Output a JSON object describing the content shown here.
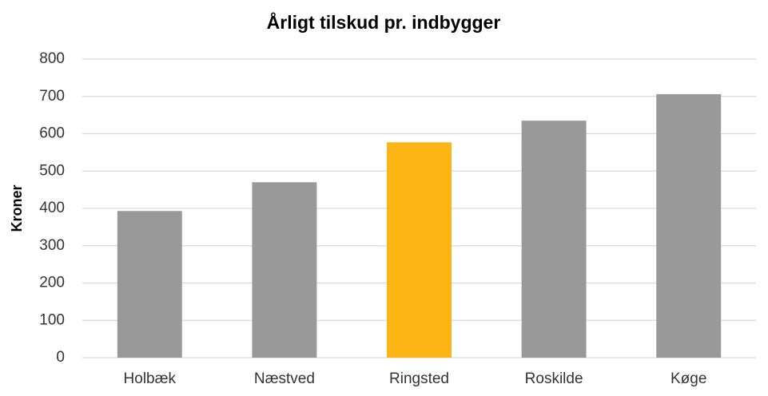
{
  "chart_data": {
    "type": "bar",
    "title": "Årligt tilskud pr. indbygger",
    "ylabel": "Kroner",
    "categories": [
      "Holbæk",
      "Næstved",
      "Ringsted",
      "Roskilde",
      "Køge"
    ],
    "values": [
      393,
      470,
      577,
      635,
      706
    ],
    "colors": [
      "#999999",
      "#999999",
      "#fdb515",
      "#999999",
      "#999999"
    ],
    "ylim": [
      0,
      800
    ],
    "yticks": [
      0,
      100,
      200,
      300,
      400,
      500,
      600,
      700,
      800
    ],
    "grid": true
  }
}
